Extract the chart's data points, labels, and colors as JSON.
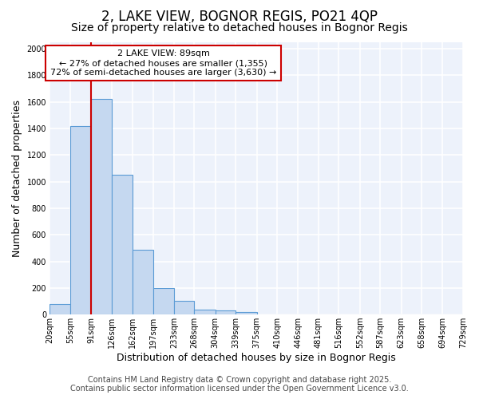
{
  "title_line1": "2, LAKE VIEW, BOGNOR REGIS, PO21 4QP",
  "title_line2": "Size of property relative to detached houses in Bognor Regis",
  "xlabel": "Distribution of detached houses by size in Bognor Regis",
  "ylabel": "Number of detached properties",
  "bin_edges": [
    20,
    55,
    91,
    126,
    162,
    197,
    233,
    268,
    304,
    339,
    375,
    410,
    446,
    481,
    516,
    552,
    587,
    623,
    658,
    694,
    729
  ],
  "bar_heights": [
    80,
    1420,
    1620,
    1050,
    490,
    200,
    105,
    40,
    30,
    20,
    0,
    0,
    0,
    0,
    0,
    0,
    0,
    0,
    0,
    0
  ],
  "bar_color": "#c5d8f0",
  "bar_edge_color": "#5b9bd5",
  "figure_bg": "#ffffff",
  "plot_bg": "#edf2fb",
  "grid_color": "#ffffff",
  "red_line_x": 91,
  "annotation_title": "2 LAKE VIEW: 89sqm",
  "annotation_line1": "← 27% of detached houses are smaller (1,355)",
  "annotation_line2": "72% of semi-detached houses are larger (3,630) →",
  "annotation_box_facecolor": "#ffffff",
  "annotation_box_edgecolor": "#cc0000",
  "red_line_color": "#cc0000",
  "ylim": [
    0,
    2050
  ],
  "yticks": [
    0,
    200,
    400,
    600,
    800,
    1000,
    1200,
    1400,
    1600,
    1800,
    2000
  ],
  "footer_line1": "Contains HM Land Registry data © Crown copyright and database right 2025.",
  "footer_line2": "Contains public sector information licensed under the Open Government Licence v3.0.",
  "title_fontsize": 12,
  "subtitle_fontsize": 10,
  "axis_label_fontsize": 9,
  "tick_fontsize": 7,
  "annotation_fontsize": 8,
  "footer_fontsize": 7
}
